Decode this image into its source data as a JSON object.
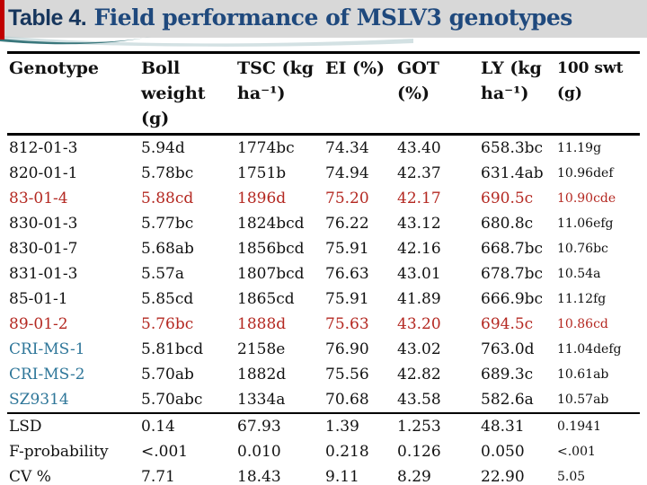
{
  "title": {
    "prefix": "Table 4.",
    "rest": " Field performance of MSLV3 genotypes"
  },
  "colors": {
    "band_bg": "#d8d8d8",
    "red_bar": "#c00000",
    "title_dark": "#17365d",
    "title_blue": "#1f497d",
    "highlight_red": "#b42821",
    "highlight_blue": "#2e7699",
    "swoosh_teal": "#3a777c",
    "swoosh_light": "#aec9cc"
  },
  "table": {
    "columns": [
      {
        "label": "Genotype"
      },
      {
        "label": "Boll weight (g)"
      },
      {
        "label": "TSC (kg ha⁻¹)"
      },
      {
        "label": "EI (%)"
      },
      {
        "label": "GOT (%)"
      },
      {
        "label": "LY (kg ha⁻¹)"
      },
      {
        "label": "100 swt (g)",
        "small": true
      }
    ],
    "rows": [
      {
        "genotype": "812-01-3",
        "highlight": null,
        "values": [
          "5.94d",
          "1774bc",
          "74.34",
          "43.40",
          "658.3bc",
          "11.19g"
        ]
      },
      {
        "genotype": "820-01-1",
        "highlight": null,
        "values": [
          "5.78bc",
          "1751b",
          "74.94",
          "42.37",
          "631.4ab",
          "10.96def"
        ]
      },
      {
        "genotype": "83-01-4",
        "highlight": "red",
        "values": [
          "5.88cd",
          "1896d",
          "75.20",
          "42.17",
          "690.5c",
          "10.90cde"
        ]
      },
      {
        "genotype": "830-01-3",
        "highlight": null,
        "values": [
          "5.77bc",
          "1824bcd",
          "76.22",
          "43.12",
          "680.8c",
          "11.06efg"
        ]
      },
      {
        "genotype": "830-01-7",
        "highlight": null,
        "values": [
          "5.68ab",
          "1856bcd",
          "75.91",
          "42.16",
          "668.7bc",
          "10.76bc"
        ]
      },
      {
        "genotype": "831-01-3",
        "highlight": null,
        "values": [
          "5.57a",
          "1807bcd",
          "76.63",
          "43.01",
          "678.7bc",
          "10.54a"
        ]
      },
      {
        "genotype": "85-01-1",
        "highlight": null,
        "values": [
          "5.85cd",
          "1865cd",
          "75.91",
          "41.89",
          "666.9bc",
          "11.12fg"
        ]
      },
      {
        "genotype": "89-01-2",
        "highlight": "red",
        "values": [
          "5.76bc",
          "1888d",
          "75.63",
          "43.20",
          "694.5c",
          "10.86cd"
        ]
      },
      {
        "genotype": "CRI-MS-1",
        "highlight": "blue",
        "values": [
          "5.81bcd",
          "2158e",
          "76.90",
          "43.02",
          "763.0d",
          "11.04defg"
        ]
      },
      {
        "genotype": "CRI-MS-2",
        "highlight": "blue",
        "values": [
          "5.70ab",
          "1882d",
          "75.56",
          "42.82",
          "689.3c",
          "10.61ab"
        ]
      },
      {
        "genotype": "SZ9314",
        "highlight": "blue",
        "values": [
          "5.70abc",
          "1334a",
          "70.68",
          "43.58",
          "582.6a",
          "10.57ab"
        ]
      }
    ],
    "stats_rows": [
      {
        "label": "LSD",
        "values": [
          "0.14",
          "67.93",
          "1.39",
          "1.253",
          "48.31",
          "0.1941"
        ]
      },
      {
        "label": "F-probability",
        "values": [
          "<.001",
          "0.010",
          "0.218",
          "0.126",
          "0.050",
          "<.001"
        ]
      },
      {
        "label": "CV %",
        "values": [
          "7.71",
          "18.43",
          "9.11",
          "8.29",
          "22.90",
          "5.05"
        ]
      }
    ]
  }
}
